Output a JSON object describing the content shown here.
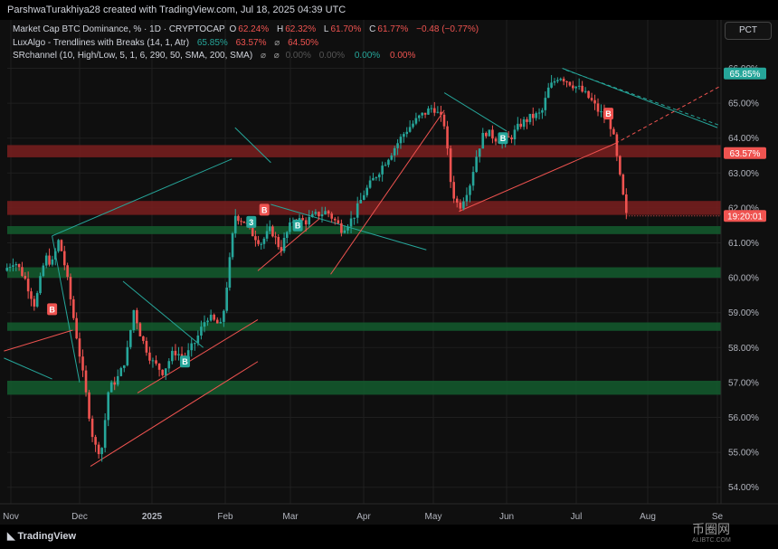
{
  "header": {
    "author_line": "ParshwaTurakhiya28 created with TradingView.com, Jul 18, 2025 04:39 UTC"
  },
  "legend": {
    "symbol": "Market Cap BTC Dominance, % · 1D · CRYPTOCAP",
    "o_label": "O",
    "o_val": "62.24%",
    "h_label": "H",
    "h_val": "62.32%",
    "l_label": "L",
    "l_val": "61.70%",
    "c_label": "C",
    "c_val": "61.77%",
    "chg": "−0.48 (−0.77%)",
    "ind1_name": "LuxAlgo - Trendlines with Breaks (14, 1, Atr)",
    "ind1_v1": "65.85%",
    "ind1_v2": "63.57%",
    "ind1_sep": "⌀",
    "ind1_v3": "64.50%",
    "ind2_name": "SRchannel (10, High/Low, 5, 1, 6, 290, 50, SMA, 200, SMA)",
    "ind2_sep1": "⌀",
    "ind2_sep2": "⌀",
    "ind2_v1": "0.00%",
    "ind2_v2": "0.00%",
    "ind2_v3": "0.00%",
    "ind2_v4": "0.00%"
  },
  "scale_button": "PCT",
  "footer": {
    "brand": "TradingView"
  },
  "watermark": {
    "main": "币圈网",
    "sub": "ALIBTC.COM"
  },
  "colors": {
    "up": "#26a69a",
    "down": "#ef5350",
    "bg": "#0f0f0f",
    "grid": "#1f1f1f"
  },
  "chart_data": {
    "type": "candlestick",
    "y_axis": {
      "ticks": [
        "66.00%",
        "65.00%",
        "64.00%",
        "63.00%",
        "62.00%",
        "61.00%",
        "60.00%",
        "59.00%",
        "58.00%",
        "57.00%",
        "56.00%",
        "55.00%",
        "54.00%"
      ],
      "ylim": [
        54.0,
        66.0
      ]
    },
    "x_axis": {
      "ticks": [
        "Nov",
        "Dec",
        "2025",
        "Feb",
        "Mar",
        "Apr",
        "May",
        "Jun",
        "Jul",
        "Aug",
        "Se"
      ]
    },
    "price_labels": [
      {
        "text": "65.85%",
        "value": 65.85,
        "color": "#26a69a"
      },
      {
        "text": "63.57%",
        "value": 63.57,
        "color": "#ef5350"
      },
      {
        "text": "19:20:01",
        "value": 61.77,
        "color": "#ef5350"
      }
    ],
    "sr_zones": [
      {
        "low": 63.45,
        "high": 63.8,
        "kind": "resistance"
      },
      {
        "low": 61.8,
        "high": 62.2,
        "kind": "resistance"
      },
      {
        "low": 61.25,
        "high": 61.48,
        "kind": "support"
      },
      {
        "low": 60.0,
        "high": 60.3,
        "kind": "support"
      },
      {
        "low": 58.48,
        "high": 58.72,
        "kind": "support"
      },
      {
        "low": 56.65,
        "high": 57.05,
        "kind": "support"
      }
    ],
    "break_markers": [
      {
        "label": "B",
        "x": 0.6,
        "value": 59.1,
        "kind": "bear"
      },
      {
        "label": "B",
        "x": 2.45,
        "value": 57.6,
        "kind": "bull"
      },
      {
        "label": "3",
        "x": 3.4,
        "value": 61.6,
        "kind": "bull"
      },
      {
        "label": "B",
        "x": 3.6,
        "value": 61.95,
        "kind": "bear"
      },
      {
        "label": "B",
        "x": 4.1,
        "value": 61.5,
        "kind": "bull"
      },
      {
        "label": "B",
        "x": 6.95,
        "value": 64.0,
        "kind": "bull"
      },
      {
        "label": "B",
        "x": 8.45,
        "value": 64.7,
        "kind": "bear"
      }
    ],
    "close_path": [
      [
        -0.1,
        60.2
      ],
      [
        0.05,
        60.5
      ],
      [
        0.2,
        60.0
      ],
      [
        0.35,
        59.2
      ],
      [
        0.5,
        60.6
      ],
      [
        0.6,
        60.4
      ],
      [
        0.7,
        61.1
      ],
      [
        0.8,
        60.2
      ],
      [
        0.9,
        59.0
      ],
      [
        1.0,
        57.8
      ],
      [
        1.1,
        56.5
      ],
      [
        1.2,
        55.2
      ],
      [
        1.3,
        55.0
      ],
      [
        1.4,
        56.8
      ],
      [
        1.55,
        57.2
      ],
      [
        1.65,
        57.8
      ],
      [
        1.75,
        59.1
      ],
      [
        1.85,
        58.3
      ],
      [
        2.0,
        57.6
      ],
      [
        2.15,
        57.3
      ],
      [
        2.3,
        57.9
      ],
      [
        2.45,
        57.7
      ],
      [
        2.6,
        58.2
      ],
      [
        2.75,
        58.9
      ],
      [
        2.95,
        58.6
      ],
      [
        3.05,
        60.2
      ],
      [
        3.15,
        61.8
      ],
      [
        3.3,
        61.6
      ],
      [
        3.4,
        61.3
      ],
      [
        3.55,
        61.0
      ],
      [
        3.7,
        61.4
      ],
      [
        3.85,
        60.8
      ],
      [
        3.95,
        61.3
      ],
      [
        4.05,
        61.7
      ],
      [
        4.2,
        61.6
      ],
      [
        4.35,
        61.8
      ],
      [
        4.5,
        61.9
      ],
      [
        4.7,
        61.4
      ],
      [
        4.85,
        61.7
      ],
      [
        5.0,
        62.4
      ],
      [
        5.2,
        63.0
      ],
      [
        5.4,
        63.6
      ],
      [
        5.6,
        64.2
      ],
      [
        5.8,
        64.6
      ],
      [
        6.0,
        64.9
      ],
      [
        6.15,
        64.4
      ],
      [
        6.25,
        62.5
      ],
      [
        6.35,
        62.0
      ],
      [
        6.5,
        62.7
      ],
      [
        6.6,
        63.6
      ],
      [
        6.7,
        64.2
      ],
      [
        6.85,
        64.0
      ],
      [
        6.95,
        63.9
      ],
      [
        7.05,
        64.0
      ],
      [
        7.2,
        64.4
      ],
      [
        7.35,
        64.6
      ],
      [
        7.5,
        64.7
      ],
      [
        7.6,
        65.4
      ],
      [
        7.75,
        65.8
      ],
      [
        7.9,
        65.6
      ],
      [
        8.05,
        65.4
      ],
      [
        8.2,
        65.1
      ],
      [
        8.3,
        64.8
      ],
      [
        8.4,
        64.6
      ],
      [
        8.5,
        64.3
      ],
      [
        8.6,
        63.0
      ],
      [
        8.7,
        61.77
      ]
    ]
  }
}
